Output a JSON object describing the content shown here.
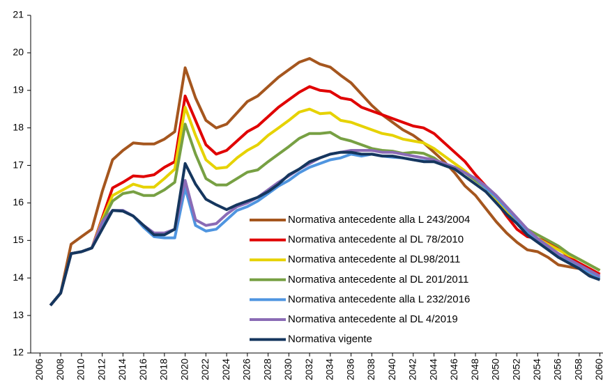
{
  "chart_data": {
    "type": "line",
    "x": [
      2007,
      2008,
      2009,
      2010,
      2011,
      2012,
      2013,
      2014,
      2015,
      2016,
      2017,
      2018,
      2019,
      2020,
      2021,
      2022,
      2023,
      2024,
      2025,
      2026,
      2027,
      2028,
      2029,
      2030,
      2031,
      2032,
      2033,
      2034,
      2035,
      2036,
      2037,
      2038,
      2039,
      2040,
      2041,
      2042,
      2043,
      2044,
      2045,
      2046,
      2047,
      2048,
      2049,
      2050,
      2051,
      2052,
      2053,
      2054,
      2055,
      2056,
      2057,
      2058,
      2059,
      2060
    ],
    "series": [
      {
        "name": "Normativa antecedente alla L 243/2004",
        "color": "#a5561e",
        "values": [
          13.27,
          13.6,
          14.9,
          15.1,
          15.3,
          16.3,
          17.15,
          17.4,
          17.6,
          17.57,
          17.57,
          17.7,
          17.9,
          19.6,
          18.8,
          18.2,
          18.0,
          18.1,
          18.4,
          18.7,
          18.85,
          19.1,
          19.35,
          19.55,
          19.75,
          19.85,
          19.7,
          19.62,
          19.4,
          19.2,
          18.9,
          18.6,
          18.35,
          18.15,
          17.95,
          17.8,
          17.6,
          17.35,
          17.1,
          16.8,
          16.45,
          16.2,
          15.85,
          15.5,
          15.2,
          14.95,
          14.75,
          14.7,
          14.55,
          14.35,
          14.3,
          14.25,
          14.1,
          14.0
        ]
      },
      {
        "name": "Normativa antecedente al DL 78/2010",
        "color": "#e00000",
        "values": [
          13.27,
          13.6,
          14.65,
          14.7,
          14.8,
          15.6,
          16.4,
          16.55,
          16.72,
          16.7,
          16.75,
          16.95,
          17.1,
          18.85,
          18.2,
          17.55,
          17.3,
          17.4,
          17.65,
          17.9,
          18.05,
          18.3,
          18.55,
          18.75,
          18.95,
          19.1,
          19.0,
          18.97,
          18.8,
          18.75,
          18.55,
          18.45,
          18.35,
          18.25,
          18.15,
          18.05,
          18.0,
          17.85,
          17.6,
          17.35,
          17.1,
          16.75,
          16.45,
          16.05,
          15.65,
          15.3,
          15.1,
          15.05,
          14.95,
          14.8,
          14.55,
          14.4,
          14.25,
          14.1
        ]
      },
      {
        "name": "Normativa antecedente al DL98/2011",
        "color": "#e6d200",
        "values": [
          13.27,
          13.6,
          14.65,
          14.7,
          14.8,
          15.55,
          16.2,
          16.35,
          16.5,
          16.42,
          16.42,
          16.65,
          16.9,
          18.55,
          17.8,
          17.15,
          16.92,
          16.95,
          17.2,
          17.4,
          17.55,
          17.8,
          18.0,
          18.2,
          18.42,
          18.5,
          18.38,
          18.4,
          18.2,
          18.15,
          18.05,
          17.95,
          17.85,
          17.8,
          17.7,
          17.65,
          17.6,
          17.45,
          17.25,
          17.05,
          16.85,
          16.6,
          16.4,
          16.1,
          15.75,
          15.45,
          15.2,
          15.05,
          14.9,
          14.75,
          14.6,
          14.5,
          14.35,
          14.2
        ]
      },
      {
        "name": "Normativa antecedente al DL 201/2011",
        "color": "#77a043",
        "values": [
          13.27,
          13.6,
          14.65,
          14.7,
          14.8,
          15.5,
          16.05,
          16.25,
          16.3,
          16.2,
          16.2,
          16.35,
          16.55,
          18.1,
          17.3,
          16.65,
          16.48,
          16.48,
          16.65,
          16.82,
          16.88,
          17.1,
          17.3,
          17.5,
          17.72,
          17.85,
          17.85,
          17.88,
          17.72,
          17.65,
          17.55,
          17.45,
          17.4,
          17.38,
          17.32,
          17.35,
          17.32,
          17.2,
          17.0,
          16.9,
          16.8,
          16.6,
          16.4,
          16.15,
          15.85,
          15.55,
          15.3,
          15.15,
          15.0,
          14.85,
          14.65,
          14.5,
          14.35,
          14.2
        ]
      },
      {
        "name": "Normativa antecedente alla L 232/2016",
        "color": "#4f95e0",
        "values": [
          13.27,
          13.6,
          14.65,
          14.7,
          14.8,
          15.45,
          15.8,
          15.8,
          15.65,
          15.35,
          15.1,
          15.07,
          15.07,
          16.4,
          15.4,
          15.25,
          15.3,
          15.55,
          15.8,
          15.9,
          16.05,
          16.25,
          16.45,
          16.6,
          16.8,
          16.95,
          17.05,
          17.15,
          17.2,
          17.3,
          17.25,
          17.3,
          17.25,
          17.22,
          17.2,
          17.15,
          17.12,
          17.1,
          17.05,
          16.95,
          16.8,
          16.65,
          16.4,
          16.15,
          15.85,
          15.55,
          15.25,
          15.0,
          14.8,
          14.6,
          14.45,
          14.3,
          14.15,
          14.0
        ]
      },
      {
        "name": "Normativa antecedente al DL 4/2019",
        "color": "#8a6bb5",
        "values": [
          13.27,
          13.6,
          14.65,
          14.7,
          14.8,
          15.5,
          15.8,
          15.8,
          15.65,
          15.4,
          15.2,
          15.2,
          15.3,
          16.6,
          15.55,
          15.4,
          15.45,
          15.7,
          15.9,
          16.0,
          16.15,
          16.35,
          16.55,
          16.72,
          16.9,
          17.05,
          17.2,
          17.3,
          17.35,
          17.4,
          17.4,
          17.4,
          17.35,
          17.35,
          17.3,
          17.25,
          17.2,
          17.15,
          17.05,
          16.95,
          16.8,
          16.65,
          16.45,
          16.2,
          15.9,
          15.6,
          15.3,
          15.05,
          14.85,
          14.65,
          14.5,
          14.35,
          14.2,
          14.05
        ]
      },
      {
        "name": "Normativa vigente",
        "color": "#15365e",
        "values": [
          13.27,
          13.6,
          14.65,
          14.7,
          14.8,
          15.3,
          15.8,
          15.78,
          15.65,
          15.4,
          15.15,
          15.15,
          15.3,
          17.05,
          16.5,
          16.1,
          15.95,
          15.82,
          15.95,
          16.05,
          16.15,
          16.3,
          16.5,
          16.75,
          16.9,
          17.1,
          17.2,
          17.3,
          17.35,
          17.35,
          17.3,
          17.3,
          17.25,
          17.25,
          17.2,
          17.15,
          17.1,
          17.1,
          17.0,
          16.9,
          16.7,
          16.5,
          16.3,
          16.0,
          15.7,
          15.45,
          15.15,
          14.95,
          14.75,
          14.55,
          14.4,
          14.25,
          14.05,
          13.95
        ]
      }
    ],
    "xlim": [
      2005.1,
      2060.3
    ],
    "xticks": [
      2006,
      2008,
      2010,
      2012,
      2014,
      2016,
      2018,
      2020,
      2022,
      2024,
      2026,
      2028,
      2030,
      2032,
      2034,
      2036,
      2038,
      2040,
      2042,
      2044,
      2046,
      2048,
      2050,
      2052,
      2054,
      2056,
      2058,
      2060
    ],
    "ylim": [
      12,
      21
    ],
    "yticks": [
      12,
      13,
      14,
      15,
      16,
      17,
      18,
      19,
      20,
      21
    ],
    "grid": false
  }
}
